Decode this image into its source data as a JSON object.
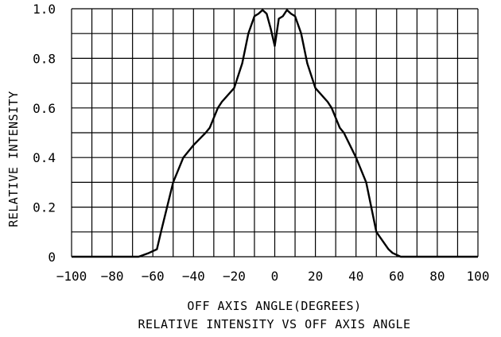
{
  "chart_data": {
    "type": "line",
    "title": "RELATIVE INTENSITY VS OFF AXIS ANGLE",
    "xlabel": "OFF AXIS ANGLE(DEGREES)",
    "ylabel": "RELATIVE INTENSITY",
    "xlim": [
      -100,
      100
    ],
    "ylim": [
      0,
      1.0
    ],
    "xticks": [
      "-100",
      "-80",
      "-60",
      "-40",
      "-20",
      "0",
      "20",
      "40",
      "60",
      "80",
      "100"
    ],
    "yticks": [
      "0",
      "0.2",
      "0.4",
      "0.6",
      "0.8",
      "1.0"
    ],
    "grid": true,
    "series": [
      {
        "name": "",
        "x": [
          -100,
          -70,
          -67,
          -62,
          -58,
          -56,
          -50,
          -45,
          -40,
          -34,
          -32,
          -28,
          -26,
          -20,
          -16,
          -13,
          -10,
          -8,
          -6,
          -4,
          -2,
          0,
          2,
          4,
          6,
          8,
          10,
          13,
          16,
          20,
          26,
          28,
          32,
          34,
          40,
          45,
          50,
          56,
          58,
          62,
          67,
          70,
          100
        ],
        "y": [
          0,
          0,
          0,
          0.015,
          0.03,
          0.1,
          0.3,
          0.4,
          0.45,
          0.5,
          0.52,
          0.6,
          0.625,
          0.68,
          0.78,
          0.9,
          0.97,
          0.98,
          0.995,
          0.98,
          0.92,
          0.85,
          0.96,
          0.97,
          0.995,
          0.98,
          0.97,
          0.9,
          0.78,
          0.68,
          0.625,
          0.6,
          0.52,
          0.5,
          0.4,
          0.3,
          0.1,
          0.03,
          0.015,
          0,
          0,
          0,
          0
        ],
        "color": "#000000"
      }
    ]
  }
}
